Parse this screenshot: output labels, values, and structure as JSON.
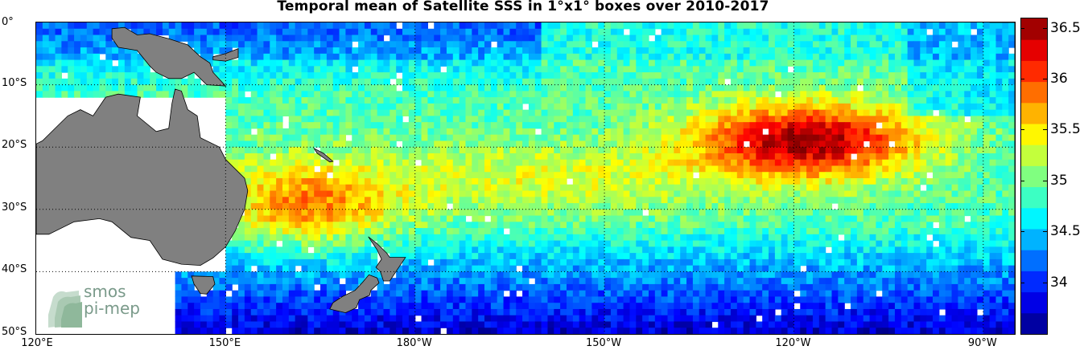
{
  "title": "Temporal mean of Satellite SSS in 1°x1° boxes over 2010-2017",
  "map": {
    "lon_range": [
      120,
      275
    ],
    "lat_range": [
      -50,
      0
    ],
    "lat_ticks": [
      {
        "value": 0,
        "label": "0°"
      },
      {
        "value": -10,
        "label": "10°S"
      },
      {
        "value": -20,
        "label": "20°S"
      },
      {
        "value": -30,
        "label": "30°S"
      },
      {
        "value": -40,
        "label": "40°S"
      },
      {
        "value": -50,
        "label": "50°S"
      }
    ],
    "lon_ticks": [
      {
        "value": 120,
        "label": "120°E"
      },
      {
        "value": 150,
        "label": "150°E"
      },
      {
        "value": 180,
        "label": "180°W"
      },
      {
        "value": 210,
        "label": "150°W"
      },
      {
        "value": 240,
        "label": "120°W"
      },
      {
        "value": 270,
        "label": "90°W"
      }
    ],
    "land_color": "#808080",
    "grid": true
  },
  "colorbar": {
    "min": 33.5,
    "max": 36.6,
    "ticks": [
      {
        "value": 36.5,
        "label": "36.5"
      },
      {
        "value": 36,
        "label": "36"
      },
      {
        "value": 35.5,
        "label": "35.5"
      },
      {
        "value": 35,
        "label": "35"
      },
      {
        "value": 34.5,
        "label": "34.5"
      },
      {
        "value": 34,
        "label": "34"
      }
    ],
    "colormap": "jet"
  },
  "logo": {
    "line1": "smos",
    "line2": "pi-mep"
  }
}
